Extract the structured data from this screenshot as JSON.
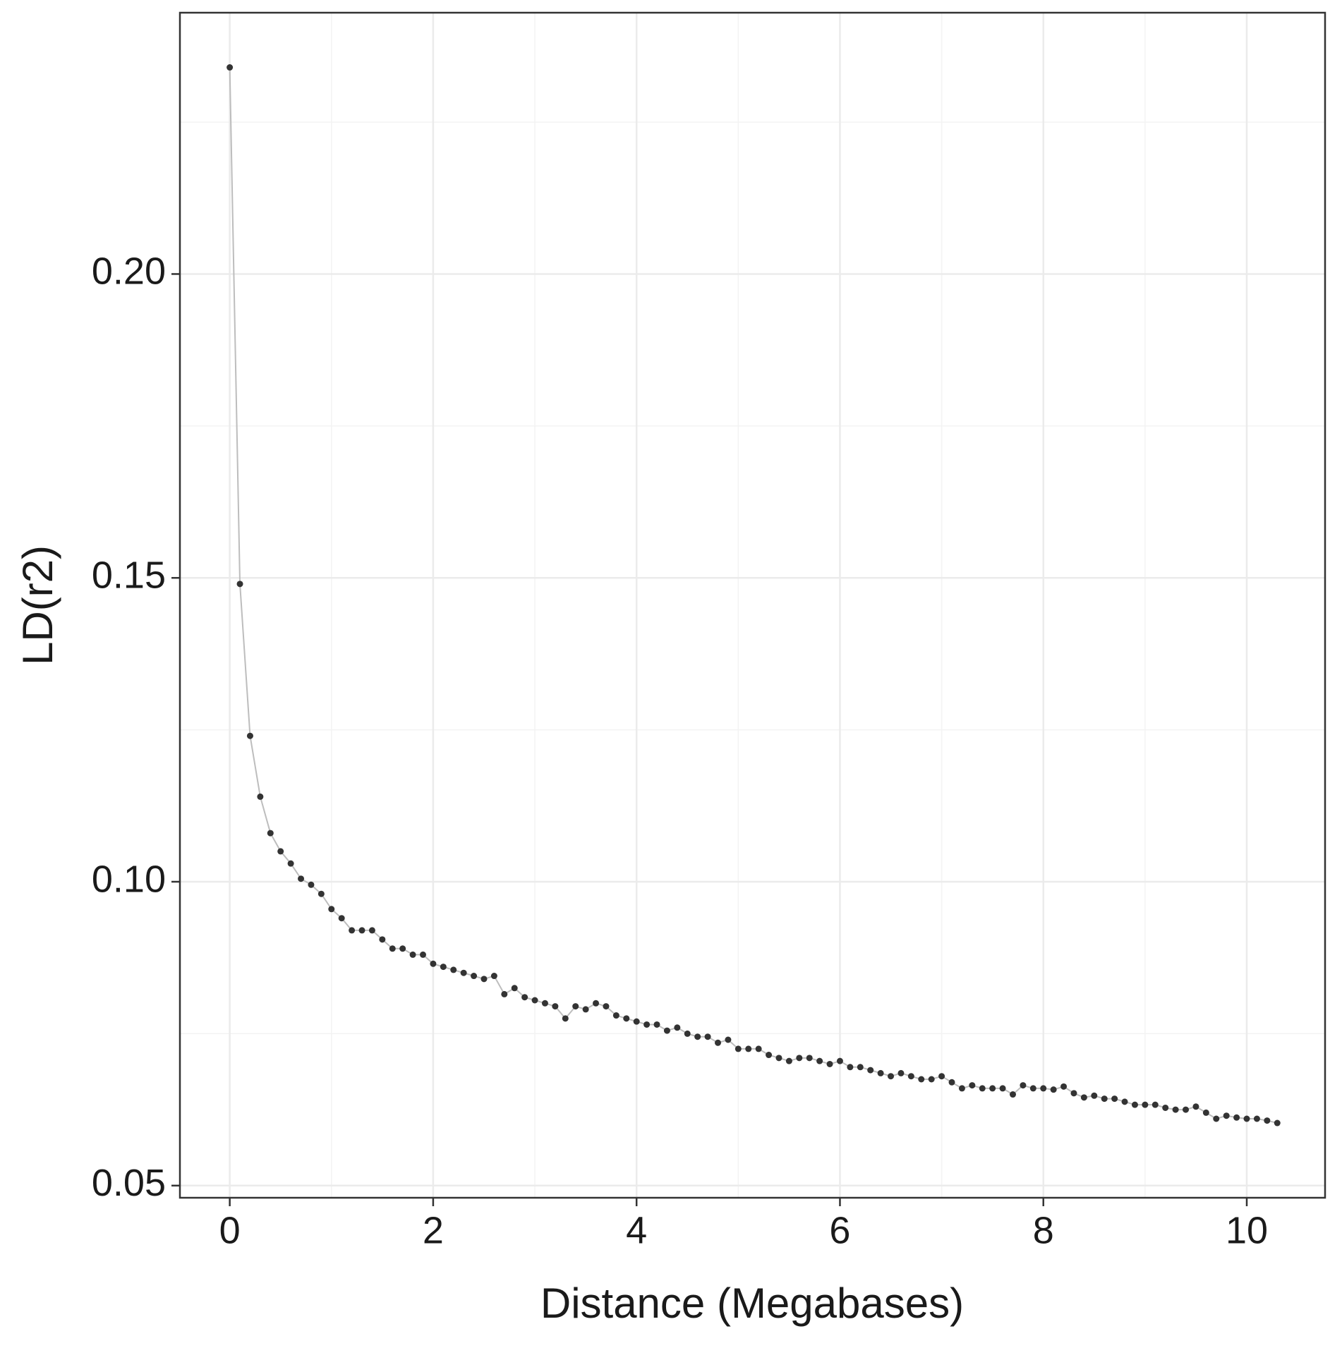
{
  "chart_data": {
    "type": "line",
    "x_label": "Distance (Megabases)",
    "y_label": "LD(r2)",
    "x": [
      0,
      0.1,
      0.2,
      0.3,
      0.4,
      0.5,
      0.6,
      0.7,
      0.8,
      0.9,
      1.0,
      1.1,
      1.2,
      1.3,
      1.4,
      1.5,
      1.6,
      1.7,
      1.8,
      1.9,
      2.0,
      2.1,
      2.2,
      2.3,
      2.4,
      2.5,
      2.6,
      2.7,
      2.8,
      2.9,
      3.0,
      3.1,
      3.2,
      3.3,
      3.4,
      3.5,
      3.6,
      3.7,
      3.8,
      3.9,
      4.0,
      4.1,
      4.2,
      4.3,
      4.4,
      4.5,
      4.6,
      4.7,
      4.8,
      4.9,
      5.0,
      5.1,
      5.2,
      5.3,
      5.4,
      5.5,
      5.6,
      5.7,
      5.8,
      5.9,
      6.0,
      6.1,
      6.2,
      6.3,
      6.4,
      6.5,
      6.6,
      6.7,
      6.8,
      6.9,
      7.0,
      7.1,
      7.2,
      7.3,
      7.4,
      7.5,
      7.6,
      7.7,
      7.8,
      7.9,
      8.0,
      8.1,
      8.2,
      8.3,
      8.4,
      8.5,
      8.6,
      8.7,
      8.8,
      8.9,
      9.0,
      9.1,
      9.2,
      9.3,
      9.4,
      9.5,
      9.6,
      9.7,
      9.8,
      9.9,
      10.0,
      10.1,
      10.2,
      10.3
    ],
    "series": [
      {
        "color": "#bdbdbd",
        "point_color": "#333333",
        "values": [
          0.234,
          0.149,
          0.124,
          0.114,
          0.108,
          0.105,
          0.103,
          0.1005,
          0.0995,
          0.098,
          0.0955,
          0.094,
          0.092,
          0.092,
          0.092,
          0.0905,
          0.089,
          0.089,
          0.088,
          0.088,
          0.0865,
          0.086,
          0.0855,
          0.085,
          0.0845,
          0.084,
          0.0845,
          0.0815,
          0.0825,
          0.081,
          0.0805,
          0.08,
          0.0795,
          0.0775,
          0.0795,
          0.079,
          0.08,
          0.0795,
          0.078,
          0.0775,
          0.077,
          0.0765,
          0.0765,
          0.0755,
          0.076,
          0.075,
          0.0745,
          0.0745,
          0.0735,
          0.074,
          0.0725,
          0.0725,
          0.0725,
          0.0715,
          0.071,
          0.0705,
          0.071,
          0.071,
          0.0705,
          0.07,
          0.0705,
          0.0695,
          0.0695,
          0.069,
          0.0685,
          0.068,
          0.0685,
          0.068,
          0.0675,
          0.0675,
          0.068,
          0.067,
          0.066,
          0.0665,
          0.066,
          0.066,
          0.066,
          0.065,
          0.0665,
          0.066,
          0.066,
          0.0658,
          0.0663,
          0.0652,
          0.0645,
          0.0648,
          0.0643,
          0.0643,
          0.0638,
          0.0633,
          0.0633,
          0.0633,
          0.0628,
          0.0625,
          0.0625,
          0.063,
          0.062,
          0.061,
          0.0615,
          0.0612,
          0.061,
          0.061,
          0.0607,
          0.0603
        ]
      }
    ],
    "xlim": [
      -0.49,
      10.77
    ],
    "xticks": [
      0,
      2,
      4,
      6,
      8,
      10
    ],
    "ylim": [
      0.048,
      0.243
    ],
    "yticks": [
      {
        "value": 0.05,
        "label": "0.05"
      },
      {
        "value": 0.1,
        "label": "0.10"
      },
      {
        "value": 0.15,
        "label": "0.15"
      },
      {
        "value": 0.2,
        "label": "0.20"
      }
    ],
    "grid": true
  }
}
